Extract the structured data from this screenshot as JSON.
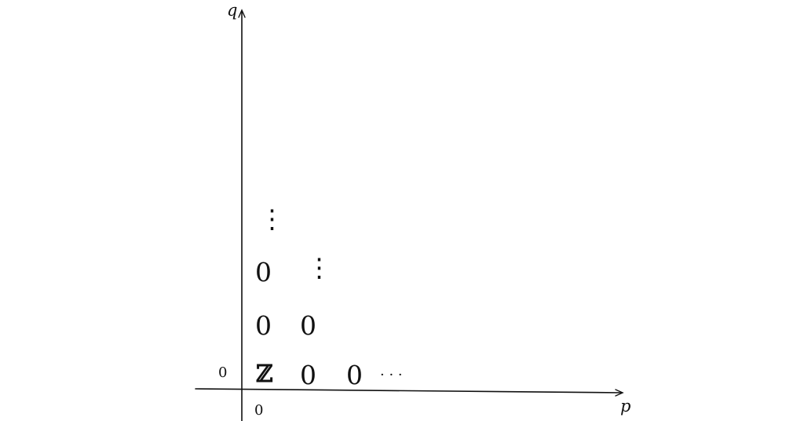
{
  "axes": {
    "x_label": "p",
    "y_label": "q"
  },
  "grid": {
    "row_index_label": "0",
    "col_index_label": "0",
    "below_axis_value": "0",
    "cells": [
      {
        "p": 0,
        "q": 0,
        "value": "ℤ"
      },
      {
        "p": 1,
        "q": 0,
        "value": "0"
      },
      {
        "p": 2,
        "q": 0,
        "value": "0"
      },
      {
        "p": 0,
        "q": 1,
        "value": "0"
      },
      {
        "p": 1,
        "q": 1,
        "value": "0"
      },
      {
        "p": 0,
        "q": 2,
        "value": "0"
      }
    ],
    "continuation_right": "· · ·",
    "continuation_up_col0": "⋮",
    "continuation_up_col1": "⋮"
  }
}
